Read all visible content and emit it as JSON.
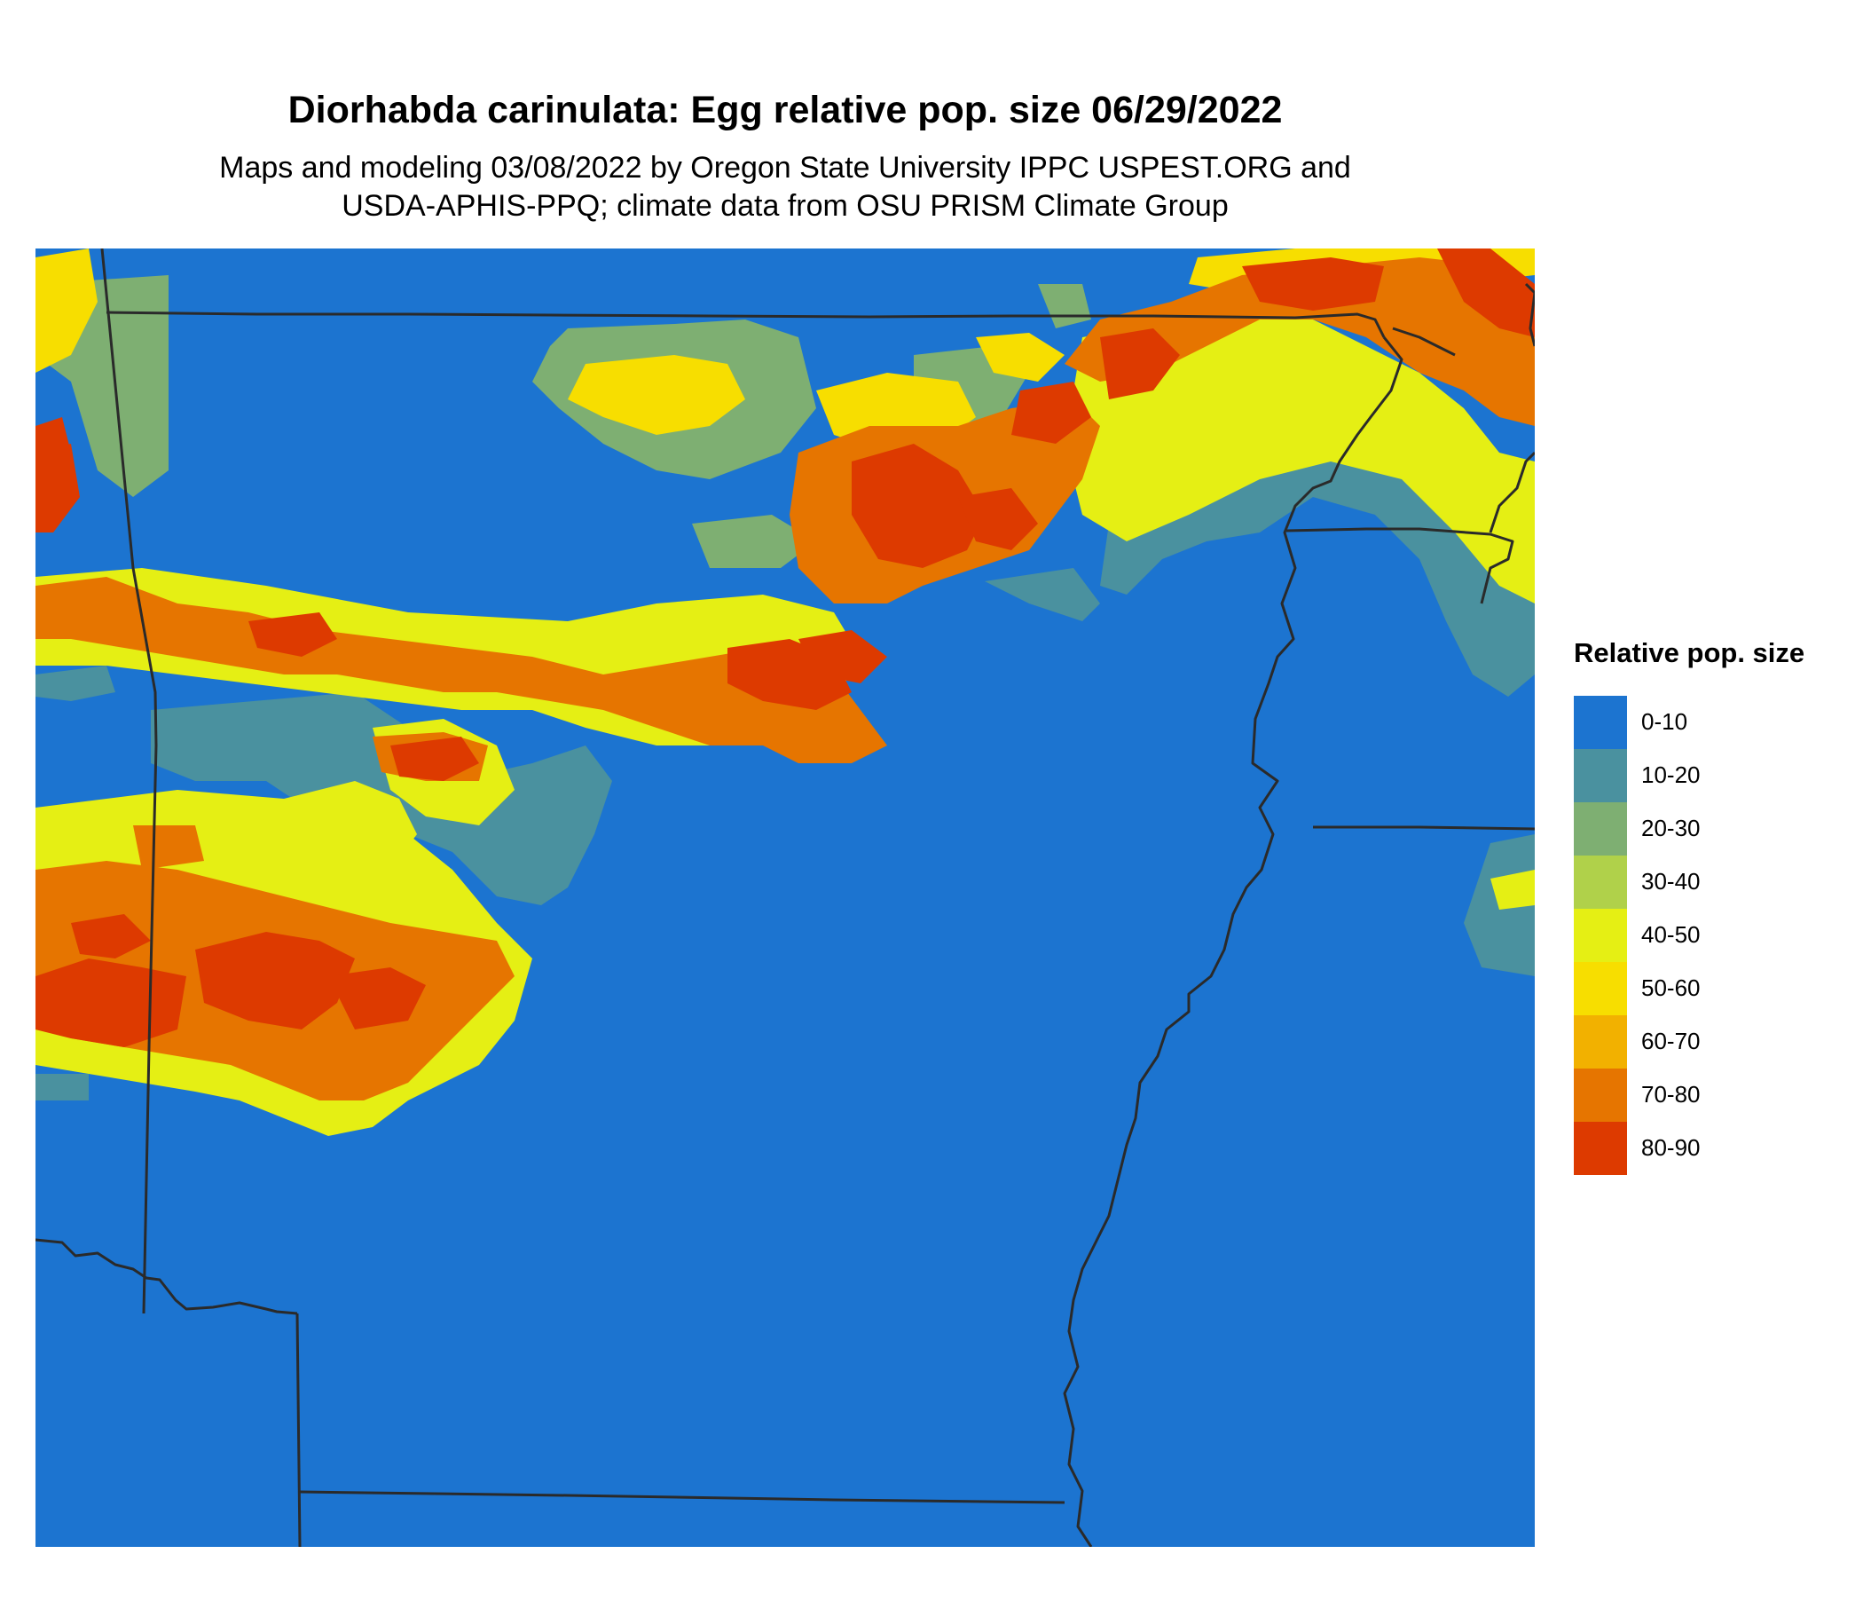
{
  "title": "Diorhabda carinulata: Egg relative pop. size 06/29/2022",
  "subtitle_line1": "Maps and modeling 03/08/2022 by Oregon State University IPPC USPEST.ORG and",
  "subtitle_line2": "USDA-APHIS-PPQ; climate data from OSU PRISM Climate Group",
  "legend": {
    "title": "Relative pop. size",
    "classes": [
      {
        "label": "0-10",
        "color": "#1c74d0"
      },
      {
        "label": "10-20",
        "color": "#4a919f"
      },
      {
        "label": "20-30",
        "color": "#7eaf72"
      },
      {
        "label": "30-40",
        "color": "#b0d14a"
      },
      {
        "label": "40-50",
        "color": "#e5ef14"
      },
      {
        "label": "50-60",
        "color": "#f7de00"
      },
      {
        "label": "60-70",
        "color": "#f2b100"
      },
      {
        "label": "70-80",
        "color": "#e67500"
      },
      {
        "label": "80-90",
        "color": "#dd3a00"
      }
    ]
  },
  "map": {
    "background_class": "0-10",
    "boundary_color": "#2a2a2a"
  }
}
